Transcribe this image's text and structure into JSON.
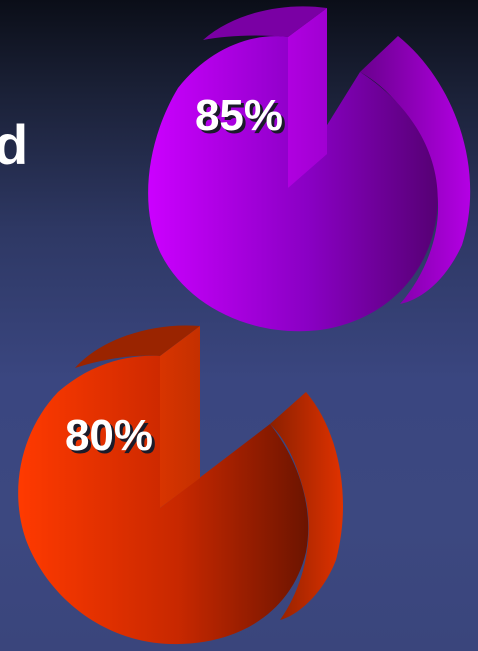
{
  "slide": {
    "partial_heading": "d"
  },
  "chart_data": [
    {
      "type": "pie",
      "values": [
        85,
        15
      ],
      "data_label": "85%",
      "colors": {
        "main": "#c000f0",
        "dark": "#5c0078"
      }
    },
    {
      "type": "pie",
      "values": [
        80,
        20
      ],
      "data_label": "80%",
      "colors": {
        "main": "#ff3a00",
        "dark": "#6e1400"
      }
    }
  ]
}
